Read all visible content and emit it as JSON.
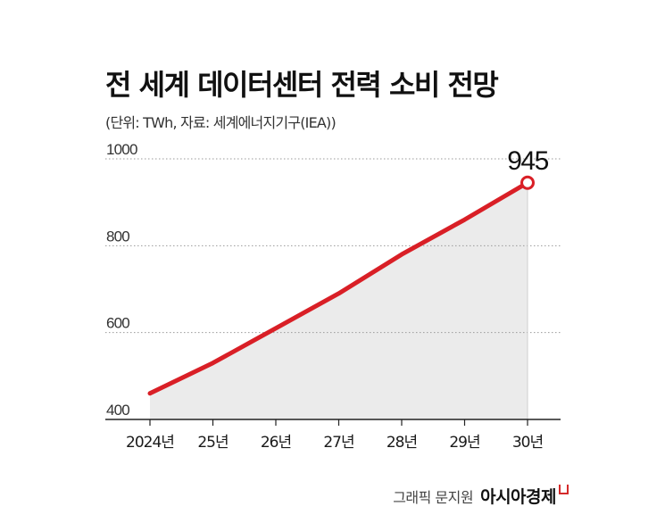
{
  "header": {
    "title": "전 세계 데이터센터 전력 소비 전망",
    "subtitle": "(단위: TWh, 자료: 세계에너지기구(IEA))"
  },
  "chart_data": {
    "type": "area",
    "title": "전 세계 데이터센터 전력 소비 전망",
    "unit_note": "(단위: TWh, 자료: 세계에너지기구(IEA))",
    "categories": [
      "2024년",
      "25년",
      "26년",
      "27년",
      "28년",
      "29년",
      "30년"
    ],
    "series": [
      {
        "values": [
          460,
          530,
          610,
          690,
          780,
          860,
          945
        ],
        "color": "#d91f26"
      }
    ],
    "ylim": [
      400,
      1000
    ],
    "yticks": [
      400,
      600,
      800,
      1000
    ],
    "grid": true,
    "annotations": [
      {
        "category": "30년",
        "value": 945,
        "text": "945"
      }
    ],
    "fill_color": "#ebebeb"
  },
  "footer": {
    "credit": "그래픽 문지원",
    "brand": "아시아경제"
  }
}
